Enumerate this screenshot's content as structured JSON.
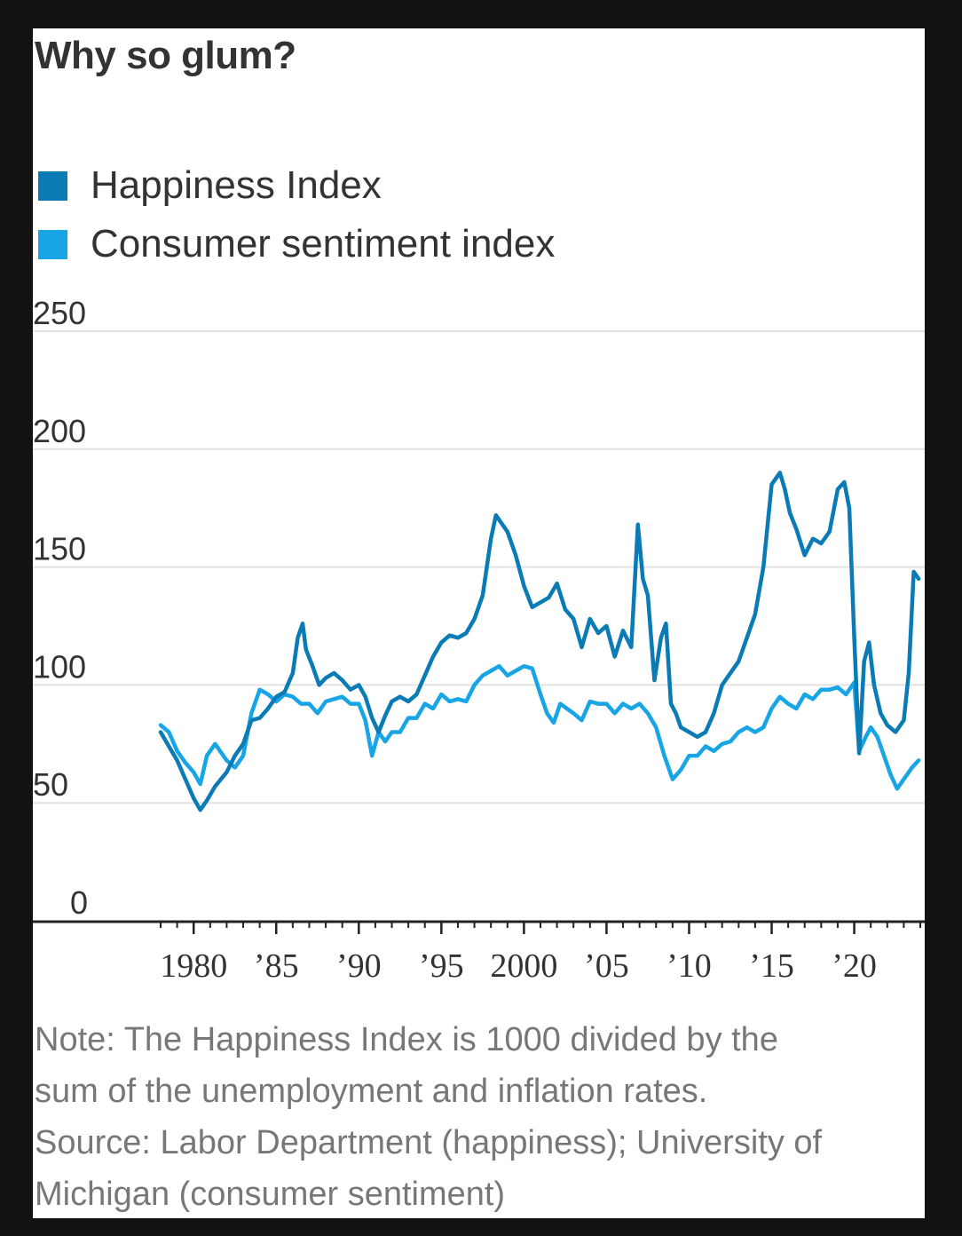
{
  "chart_data": {
    "type": "line",
    "title": "Why so glum?",
    "ylim": [
      0,
      250
    ],
    "y_ticks": [
      "250",
      "200",
      "150",
      "100",
      "50",
      "0"
    ],
    "y_tick_values": [
      250,
      200,
      150,
      100,
      50,
      0
    ],
    "x_range": [
      1978,
      2024
    ],
    "x_ticks": [
      "1980",
      "’85",
      "’90",
      "’95",
      "2000",
      "’05",
      "’10",
      "’15",
      "’20"
    ],
    "x_tick_values": [
      1980,
      1985,
      1990,
      1995,
      2000,
      2005,
      2010,
      2015,
      2020
    ],
    "grid": true,
    "legend_position": "top-left",
    "series": [
      {
        "name": "Happiness Index",
        "color": "#0a7bb4",
        "x": [
          1978.0,
          1978.5,
          1979.0,
          1979.5,
          1980.0,
          1980.4,
          1980.8,
          1981.3,
          1982.0,
          1982.5,
          1983.0,
          1983.5,
          1984.0,
          1984.5,
          1985.0,
          1985.5,
          1986.0,
          1986.3,
          1986.6,
          1986.8,
          1987.2,
          1987.6,
          1988.0,
          1988.5,
          1989.0,
          1989.5,
          1990.0,
          1990.4,
          1990.8,
          1991.2,
          1991.6,
          1992.0,
          1992.5,
          1993.0,
          1993.5,
          1994.0,
          1994.5,
          1995.0,
          1995.5,
          1996.0,
          1996.5,
          1997.0,
          1997.5,
          1998.0,
          1998.3,
          1998.7,
          1999.0,
          1999.5,
          2000.0,
          2000.5,
          2001.0,
          2001.5,
          2002.0,
          2002.5,
          2003.0,
          2003.5,
          2004.0,
          2004.5,
          2005.0,
          2005.5,
          2006.0,
          2006.5,
          2006.9,
          2007.2,
          2007.5,
          2007.9,
          2008.3,
          2008.6,
          2008.9,
          2009.2,
          2009.5,
          2010.0,
          2010.5,
          2011.0,
          2011.5,
          2012.0,
          2012.5,
          2013.0,
          2013.5,
          2014.0,
          2014.5,
          2015.0,
          2015.5,
          2015.8,
          2016.1,
          2016.5,
          2017.0,
          2017.5,
          2018.0,
          2018.5,
          2019.0,
          2019.4,
          2019.7,
          2020.0,
          2020.3,
          2020.6,
          2020.9,
          2021.2,
          2021.6,
          2022.0,
          2022.5,
          2023.0,
          2023.3,
          2023.6,
          2023.9
        ],
        "values": [
          80,
          74,
          68,
          60,
          52,
          47,
          51,
          57,
          63,
          70,
          75,
          85,
          86,
          90,
          95,
          97,
          105,
          120,
          126,
          115,
          108,
          100,
          103,
          105,
          102,
          98,
          100,
          95,
          86,
          80,
          87,
          93,
          95,
          93,
          96,
          104,
          112,
          118,
          121,
          120,
          122,
          128,
          138,
          162,
          172,
          168,
          165,
          155,
          142,
          133,
          135,
          137,
          143,
          132,
          128,
          116,
          128,
          122,
          125,
          112,
          123,
          116,
          168,
          145,
          138,
          102,
          120,
          126,
          92,
          88,
          82,
          80,
          78,
          80,
          88,
          100,
          105,
          110,
          120,
          130,
          150,
          185,
          190,
          183,
          173,
          166,
          155,
          162,
          160,
          165,
          183,
          186,
          175,
          120,
          71,
          110,
          118,
          100,
          88,
          83,
          80,
          85,
          105,
          148,
          145
        ]
      },
      {
        "name": "Consumer sentiment index",
        "color": "#17a5e6",
        "x": [
          1978.0,
          1978.5,
          1979.0,
          1979.5,
          1980.0,
          1980.4,
          1980.8,
          1981.3,
          1982.0,
          1982.5,
          1983.0,
          1983.5,
          1984.0,
          1984.5,
          1985.0,
          1985.5,
          1986.0,
          1986.5,
          1987.0,
          1987.5,
          1988.0,
          1988.5,
          1989.0,
          1989.5,
          1990.0,
          1990.4,
          1990.8,
          1991.2,
          1991.6,
          1992.0,
          1992.5,
          1993.0,
          1993.5,
          1994.0,
          1994.5,
          1995.0,
          1995.5,
          1996.0,
          1996.5,
          1997.0,
          1997.5,
          1998.0,
          1998.5,
          1999.0,
          1999.5,
          2000.0,
          2000.5,
          2001.0,
          2001.4,
          2001.8,
          2002.2,
          2002.6,
          2003.0,
          2003.5,
          2004.0,
          2004.5,
          2005.0,
          2005.5,
          2006.0,
          2006.5,
          2007.0,
          2007.5,
          2008.0,
          2008.5,
          2009.0,
          2009.5,
          2010.0,
          2010.5,
          2011.0,
          2011.5,
          2012.0,
          2012.5,
          2013.0,
          2013.5,
          2014.0,
          2014.5,
          2015.0,
          2015.5,
          2016.0,
          2016.5,
          2017.0,
          2017.5,
          2018.0,
          2018.5,
          2019.0,
          2019.5,
          2020.0,
          2020.3,
          2020.7,
          2021.0,
          2021.4,
          2021.8,
          2022.2,
          2022.6,
          2023.0,
          2023.5,
          2023.9
        ],
        "values": [
          83,
          80,
          72,
          67,
          63,
          58,
          70,
          75,
          68,
          65,
          70,
          88,
          98,
          96,
          93,
          96,
          95,
          92,
          92,
          88,
          93,
          94,
          95,
          92,
          92,
          85,
          70,
          80,
          76,
          80,
          80,
          86,
          86,
          92,
          90,
          96,
          93,
          94,
          93,
          100,
          104,
          106,
          108,
          104,
          106,
          108,
          107,
          96,
          88,
          84,
          92,
          90,
          88,
          85,
          93,
          92,
          92,
          88,
          92,
          90,
          92,
          88,
          82,
          70,
          60,
          64,
          70,
          70,
          74,
          72,
          75,
          76,
          80,
          82,
          80,
          82,
          90,
          95,
          92,
          90,
          96,
          94,
          98,
          98,
          99,
          96,
          101,
          72,
          78,
          82,
          78,
          70,
          62,
          56,
          60,
          65,
          68
        ]
      }
    ]
  },
  "notes": {
    "line1": "Note: The Happiness Index is 1000 divided by the",
    "line2": "sum of the unemployment and inflation rates.",
    "line3": "Source: Labor Department (happiness); University of",
    "line4": "Michigan (consumer sentiment)"
  }
}
